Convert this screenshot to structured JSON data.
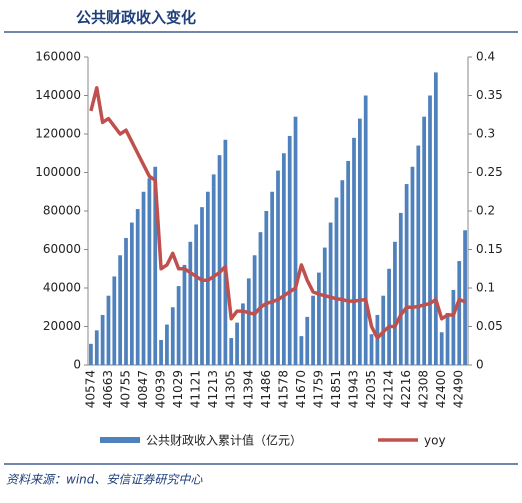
{
  "chart_data": {
    "type": "bar_line",
    "title": "公共财政收入变化",
    "source": "资料来源：wind、安信证券研究中心",
    "categories": [
      "40574",
      null,
      null,
      "40663",
      null,
      null,
      "40755",
      null,
      null,
      "40847",
      null,
      null,
      "40939",
      null,
      null,
      "41029",
      null,
      null,
      "41121",
      null,
      null,
      "41213",
      null,
      null,
      "41305",
      null,
      null,
      "41394",
      null,
      null,
      "41486",
      null,
      null,
      "41578",
      null,
      null,
      "41670",
      null,
      null,
      "41759",
      null,
      null,
      "41851",
      null,
      null,
      "41943",
      null,
      null,
      "42035",
      null,
      null,
      "42124",
      null,
      null,
      "42216",
      null,
      null,
      "42308",
      null,
      null,
      "42400",
      null,
      null,
      "42490",
      null
    ],
    "series": [
      {
        "name": "公共财政收入累计值（亿元）",
        "color": "#4f81bd",
        "values": [
          11000,
          18000,
          26000,
          36000,
          46000,
          57000,
          66000,
          74000,
          81000,
          90000,
          97000,
          103000,
          13000,
          21000,
          30000,
          41000,
          52000,
          64000,
          73000,
          82000,
          90000,
          99000,
          109000,
          117000,
          14000,
          22000,
          32000,
          45000,
          57000,
          69000,
          80000,
          90000,
          101000,
          110000,
          119000,
          129000,
          15000,
          25000,
          36000,
          48000,
          61000,
          74000,
          87000,
          96000,
          106000,
          118000,
          128000,
          140000,
          16000,
          26000,
          36000,
          50000,
          64000,
          79000,
          94000,
          103000,
          114000,
          129000,
          140000,
          152000,
          17000,
          27000,
          39000,
          54000,
          70000
        ]
      },
      {
        "name": "yoy",
        "color": "#c0504d",
        "axis": "y2",
        "values": [
          0.33,
          0.36,
          0.315,
          0.32,
          0.31,
          0.3,
          0.305,
          0.29,
          0.275,
          0.26,
          0.245,
          0.24,
          0.125,
          0.13,
          0.145,
          0.125,
          0.125,
          0.12,
          0.115,
          0.11,
          0.11,
          0.115,
          0.12,
          0.128,
          0.06,
          0.07,
          0.07,
          0.068,
          0.066,
          0.075,
          0.08,
          0.082,
          0.085,
          0.09,
          0.095,
          0.1,
          0.13,
          0.11,
          0.095,
          0.092,
          0.09,
          0.088,
          0.086,
          0.085,
          0.083,
          0.083,
          0.084,
          0.085,
          0.05,
          0.035,
          0.043,
          0.05,
          0.05,
          0.065,
          0.075,
          0.075,
          0.076,
          0.078,
          0.08,
          0.085,
          0.06,
          0.065,
          0.065,
          0.085,
          0.082
        ]
      }
    ],
    "ylim": [
      0,
      160000
    ],
    "yticks": [
      0,
      20000,
      40000,
      60000,
      80000,
      100000,
      120000,
      140000,
      160000
    ],
    "y2lim": [
      0,
      0.4
    ],
    "y2ticks": [
      0,
      0.05,
      0.1,
      0.15,
      0.2,
      0.25,
      0.3,
      0.35,
      0.4
    ]
  }
}
